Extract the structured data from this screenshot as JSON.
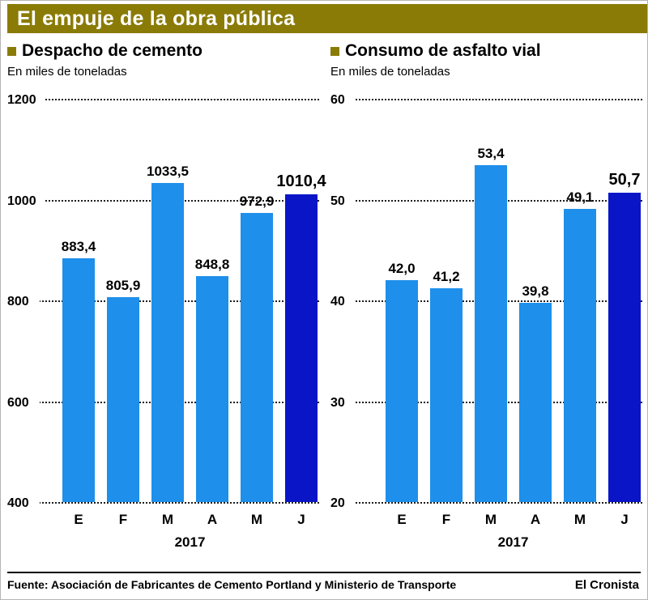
{
  "page_title": "El empuje de la obra pública",
  "colors": {
    "accent": "#8A7B07",
    "bar": "#1E8FEA",
    "bar_highlight": "#0A15C8",
    "title_text": "#FFFFFF"
  },
  "chart_data": [
    {
      "type": "bar",
      "title": "Despacho de cemento",
      "unit_label": "En miles de toneladas",
      "categories": [
        "E",
        "F",
        "M",
        "A",
        "M",
        "J"
      ],
      "x_axis_label": "2017",
      "values": [
        883.4,
        805.9,
        1033.5,
        848.8,
        972.9,
        1010.4
      ],
      "value_labels": [
        "883,4",
        "805,9",
        "1033,5",
        "848,8",
        "972,9",
        "1010,4"
      ],
      "ylim": [
        400,
        1200
      ],
      "ytick_labels": [
        "1200",
        "1000",
        "800",
        "600",
        "400"
      ],
      "highlight_index": 5,
      "legend_position": "none",
      "grid": "horizontal-dotted"
    },
    {
      "type": "bar",
      "title": "Consumo de asfalto vial",
      "unit_label": "En miles de toneladas",
      "categories": [
        "E",
        "F",
        "M",
        "A",
        "M",
        "J"
      ],
      "x_axis_label": "2017",
      "values": [
        42.0,
        41.2,
        53.4,
        39.8,
        49.1,
        50.7
      ],
      "value_labels": [
        "42,0",
        "41,2",
        "53,4",
        "39,8",
        "49,1",
        "50,7"
      ],
      "ylim": [
        20,
        60
      ],
      "ytick_labels": [
        "60",
        "50",
        "40",
        "30",
        "20"
      ],
      "highlight_index": 5,
      "legend_position": "none",
      "grid": "horizontal-dotted"
    }
  ],
  "footer": {
    "source_label": "Fuente:",
    "source_text": "Asociación de Fabricantes de Cemento Portland y Ministerio de Transporte",
    "credit": "El Cronista"
  }
}
